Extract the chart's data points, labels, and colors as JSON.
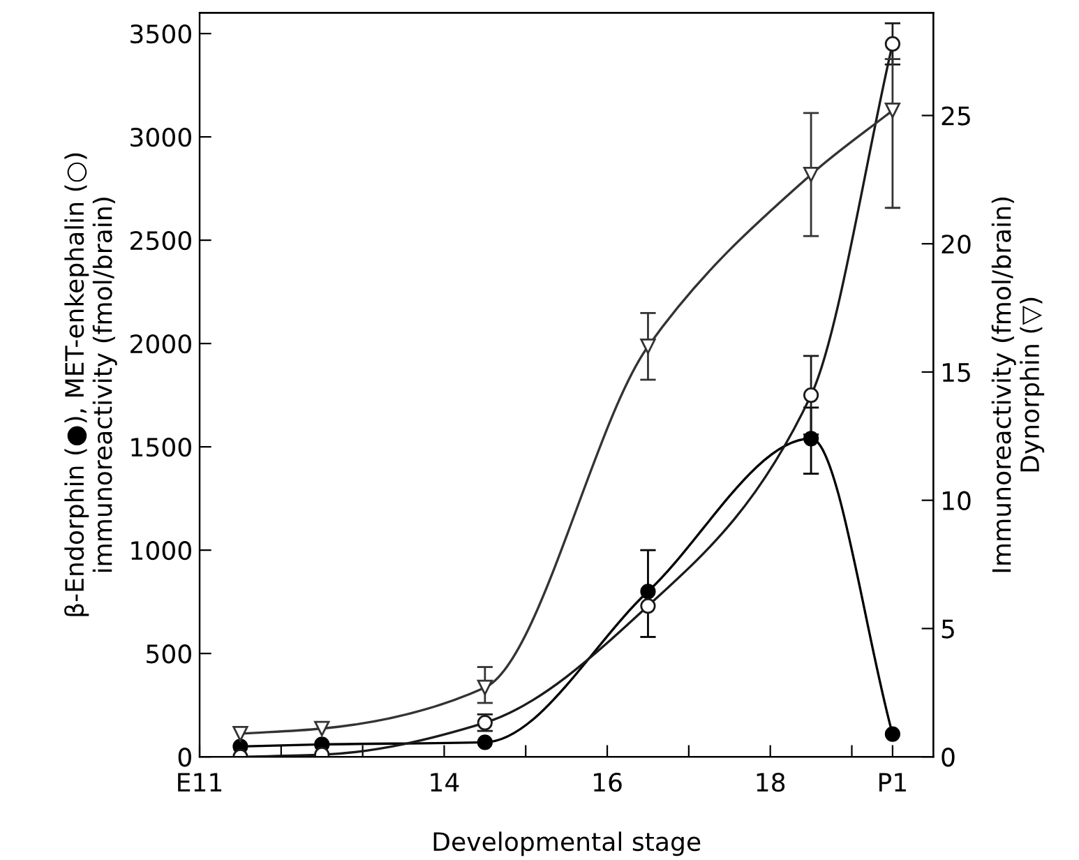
{
  "chart_data": {
    "type": "line",
    "xlabel": "Developmental stage",
    "ylabel": "β-Endorphin (●), MET-enkephalin (○)\nimmunoreactivity (fmol/brain)",
    "y2label": "Immunoreactivity (fmol/brain)\nDynorphin (▽)",
    "x": [
      11.5,
      12.5,
      14.5,
      16.5,
      18.5,
      19.5
    ],
    "xlim": [
      11,
      20
    ],
    "xticks": [
      {
        "value": 11,
        "label": "E11"
      },
      {
        "value": 12,
        "label": null
      },
      {
        "value": 13,
        "label": null
      },
      14,
      {
        "value": 15,
        "label": null
      },
      16,
      {
        "value": 17,
        "label": null
      },
      18,
      {
        "value": 19,
        "label": null
      },
      {
        "value": 19.5,
        "label": "P1"
      }
    ],
    "ylim": [
      0,
      3600
    ],
    "yticks": [
      0,
      500,
      1000,
      1500,
      2000,
      2500,
      3000,
      3500
    ],
    "y2lim": [
      0,
      29
    ],
    "y2ticks": [
      0,
      5,
      10,
      15,
      20,
      25
    ],
    "grid": false,
    "legend": false,
    "line_style": "solid",
    "series": [
      {
        "color": "#000000",
        "marker": "circle",
        "values": [
          50,
          60,
          70,
          800,
          1540,
          110
        ],
        "errors": [
          null,
          null,
          null,
          [
            580,
            1000
          ],
          [
            1370,
            1690
          ],
          null
        ]
      },
      {
        "color": "#1a1a1a",
        "marker": "circle",
        "values": [
          0,
          10,
          165,
          730,
          1750,
          3450
        ],
        "errors": [
          null,
          null,
          40,
          null,
          190,
          100
        ]
      },
      {
        "color": "#333333",
        "marker": "triangle",
        "axis": "y2",
        "values": [
          0.9,
          1.1,
          2.7,
          16.0,
          22.7,
          25.2
        ],
        "errors": [
          null,
          null,
          [
            2.1,
            3.5
          ],
          1.3,
          2.4,
          [
            21.4,
            27.2
          ]
        ]
      }
    ]
  }
}
